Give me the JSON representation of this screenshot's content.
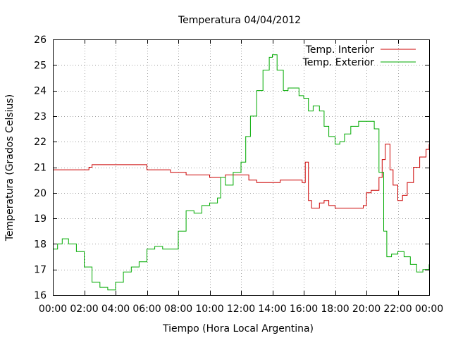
{
  "chart_data": {
    "type": "line",
    "title": "Temperatura 04/04/2012",
    "xlabel": "Tiempo (Hora Local Argentina)",
    "ylabel": "Temperatura (Grados Celsius)",
    "xlim": [
      0,
      24
    ],
    "ylim": [
      16,
      26
    ],
    "x_tick_values": [
      0,
      2,
      4,
      6,
      8,
      10,
      12,
      14,
      16,
      18,
      20,
      22,
      24
    ],
    "x_tick_labels": [
      "00:00",
      "02:00",
      "04:00",
      "06:00",
      "08:00",
      "10:00",
      "12:00",
      "14:00",
      "16:00",
      "18:00",
      "20:00",
      "22:00",
      "00:00"
    ],
    "y_ticks": [
      16,
      17,
      18,
      19,
      20,
      21,
      22,
      23,
      24,
      25,
      26
    ],
    "grid": true,
    "legend_position": "top-right",
    "series": [
      {
        "name": "Temp. Interior",
        "color": "#cc0000",
        "points": [
          [
            0,
            20.9
          ],
          [
            1,
            20.9
          ],
          [
            2,
            20.9
          ],
          [
            2.3,
            21.0
          ],
          [
            2.5,
            21.1
          ],
          [
            3.0,
            21.1
          ],
          [
            3.5,
            21.1
          ],
          [
            4.0,
            21.1
          ],
          [
            5.0,
            21.1
          ],
          [
            5.8,
            21.1
          ],
          [
            6.0,
            20.9
          ],
          [
            7.0,
            20.9
          ],
          [
            7.5,
            20.8
          ],
          [
            8.0,
            20.8
          ],
          [
            8.5,
            20.7
          ],
          [
            9.0,
            20.7
          ],
          [
            10.0,
            20.6
          ],
          [
            11.0,
            20.7
          ],
          [
            12.0,
            20.7
          ],
          [
            12.5,
            20.5
          ],
          [
            13.0,
            20.4
          ],
          [
            14.0,
            20.4
          ],
          [
            14.5,
            20.5
          ],
          [
            15.0,
            20.5
          ],
          [
            15.5,
            20.5
          ],
          [
            15.9,
            20.4
          ],
          [
            16.1,
            21.2
          ],
          [
            16.3,
            19.7
          ],
          [
            16.5,
            19.4
          ],
          [
            16.8,
            19.4
          ],
          [
            17.0,
            19.6
          ],
          [
            17.3,
            19.7
          ],
          [
            17.6,
            19.5
          ],
          [
            18.0,
            19.4
          ],
          [
            19.0,
            19.4
          ],
          [
            19.5,
            19.4
          ],
          [
            19.8,
            19.5
          ],
          [
            20.0,
            20.0
          ],
          [
            20.3,
            20.1
          ],
          [
            20.6,
            20.1
          ],
          [
            20.8,
            20.6
          ],
          [
            21.0,
            21.3
          ],
          [
            21.2,
            21.9
          ],
          [
            21.5,
            20.9
          ],
          [
            21.7,
            20.3
          ],
          [
            22.0,
            19.7
          ],
          [
            22.3,
            19.9
          ],
          [
            22.6,
            20.4
          ],
          [
            23.0,
            21.0
          ],
          [
            23.4,
            21.4
          ],
          [
            23.8,
            21.7
          ],
          [
            24.0,
            21.9
          ]
        ]
      },
      {
        "name": "Temp. Exterior",
        "color": "#00aa00",
        "points": [
          [
            0,
            17.8
          ],
          [
            0.3,
            18.0
          ],
          [
            0.6,
            18.2
          ],
          [
            1.0,
            18.0
          ],
          [
            1.5,
            17.7
          ],
          [
            2.0,
            17.1
          ],
          [
            2.5,
            16.5
          ],
          [
            3.0,
            16.3
          ],
          [
            3.5,
            16.2
          ],
          [
            4.0,
            16.5
          ],
          [
            4.5,
            16.9
          ],
          [
            5.0,
            17.1
          ],
          [
            5.5,
            17.3
          ],
          [
            6.0,
            17.8
          ],
          [
            6.5,
            17.9
          ],
          [
            7.0,
            17.8
          ],
          [
            7.5,
            17.8
          ],
          [
            8.0,
            18.5
          ],
          [
            8.5,
            19.3
          ],
          [
            9.0,
            19.2
          ],
          [
            9.5,
            19.5
          ],
          [
            10.0,
            19.6
          ],
          [
            10.5,
            19.8
          ],
          [
            10.7,
            20.6
          ],
          [
            11.0,
            20.3
          ],
          [
            11.5,
            20.8
          ],
          [
            12.0,
            21.2
          ],
          [
            12.3,
            22.2
          ],
          [
            12.6,
            23.0
          ],
          [
            13.0,
            24.0
          ],
          [
            13.4,
            24.8
          ],
          [
            13.8,
            25.3
          ],
          [
            14.0,
            25.4
          ],
          [
            14.3,
            24.8
          ],
          [
            14.7,
            24.0
          ],
          [
            15.0,
            24.1
          ],
          [
            15.3,
            24.1
          ],
          [
            15.7,
            23.8
          ],
          [
            16.0,
            23.7
          ],
          [
            16.3,
            23.2
          ],
          [
            16.6,
            23.4
          ],
          [
            17.0,
            23.2
          ],
          [
            17.3,
            22.6
          ],
          [
            17.6,
            22.2
          ],
          [
            18.0,
            21.9
          ],
          [
            18.3,
            22.0
          ],
          [
            18.6,
            22.3
          ],
          [
            19.0,
            22.6
          ],
          [
            19.5,
            22.8
          ],
          [
            20.0,
            22.8
          ],
          [
            20.3,
            22.8
          ],
          [
            20.5,
            22.5
          ],
          [
            20.8,
            20.8
          ],
          [
            21.1,
            18.5
          ],
          [
            21.3,
            17.5
          ],
          [
            21.6,
            17.6
          ],
          [
            22.0,
            17.7
          ],
          [
            22.4,
            17.5
          ],
          [
            22.8,
            17.2
          ],
          [
            23.2,
            16.9
          ],
          [
            23.6,
            17.0
          ],
          [
            24.0,
            17.2
          ]
        ]
      }
    ]
  }
}
